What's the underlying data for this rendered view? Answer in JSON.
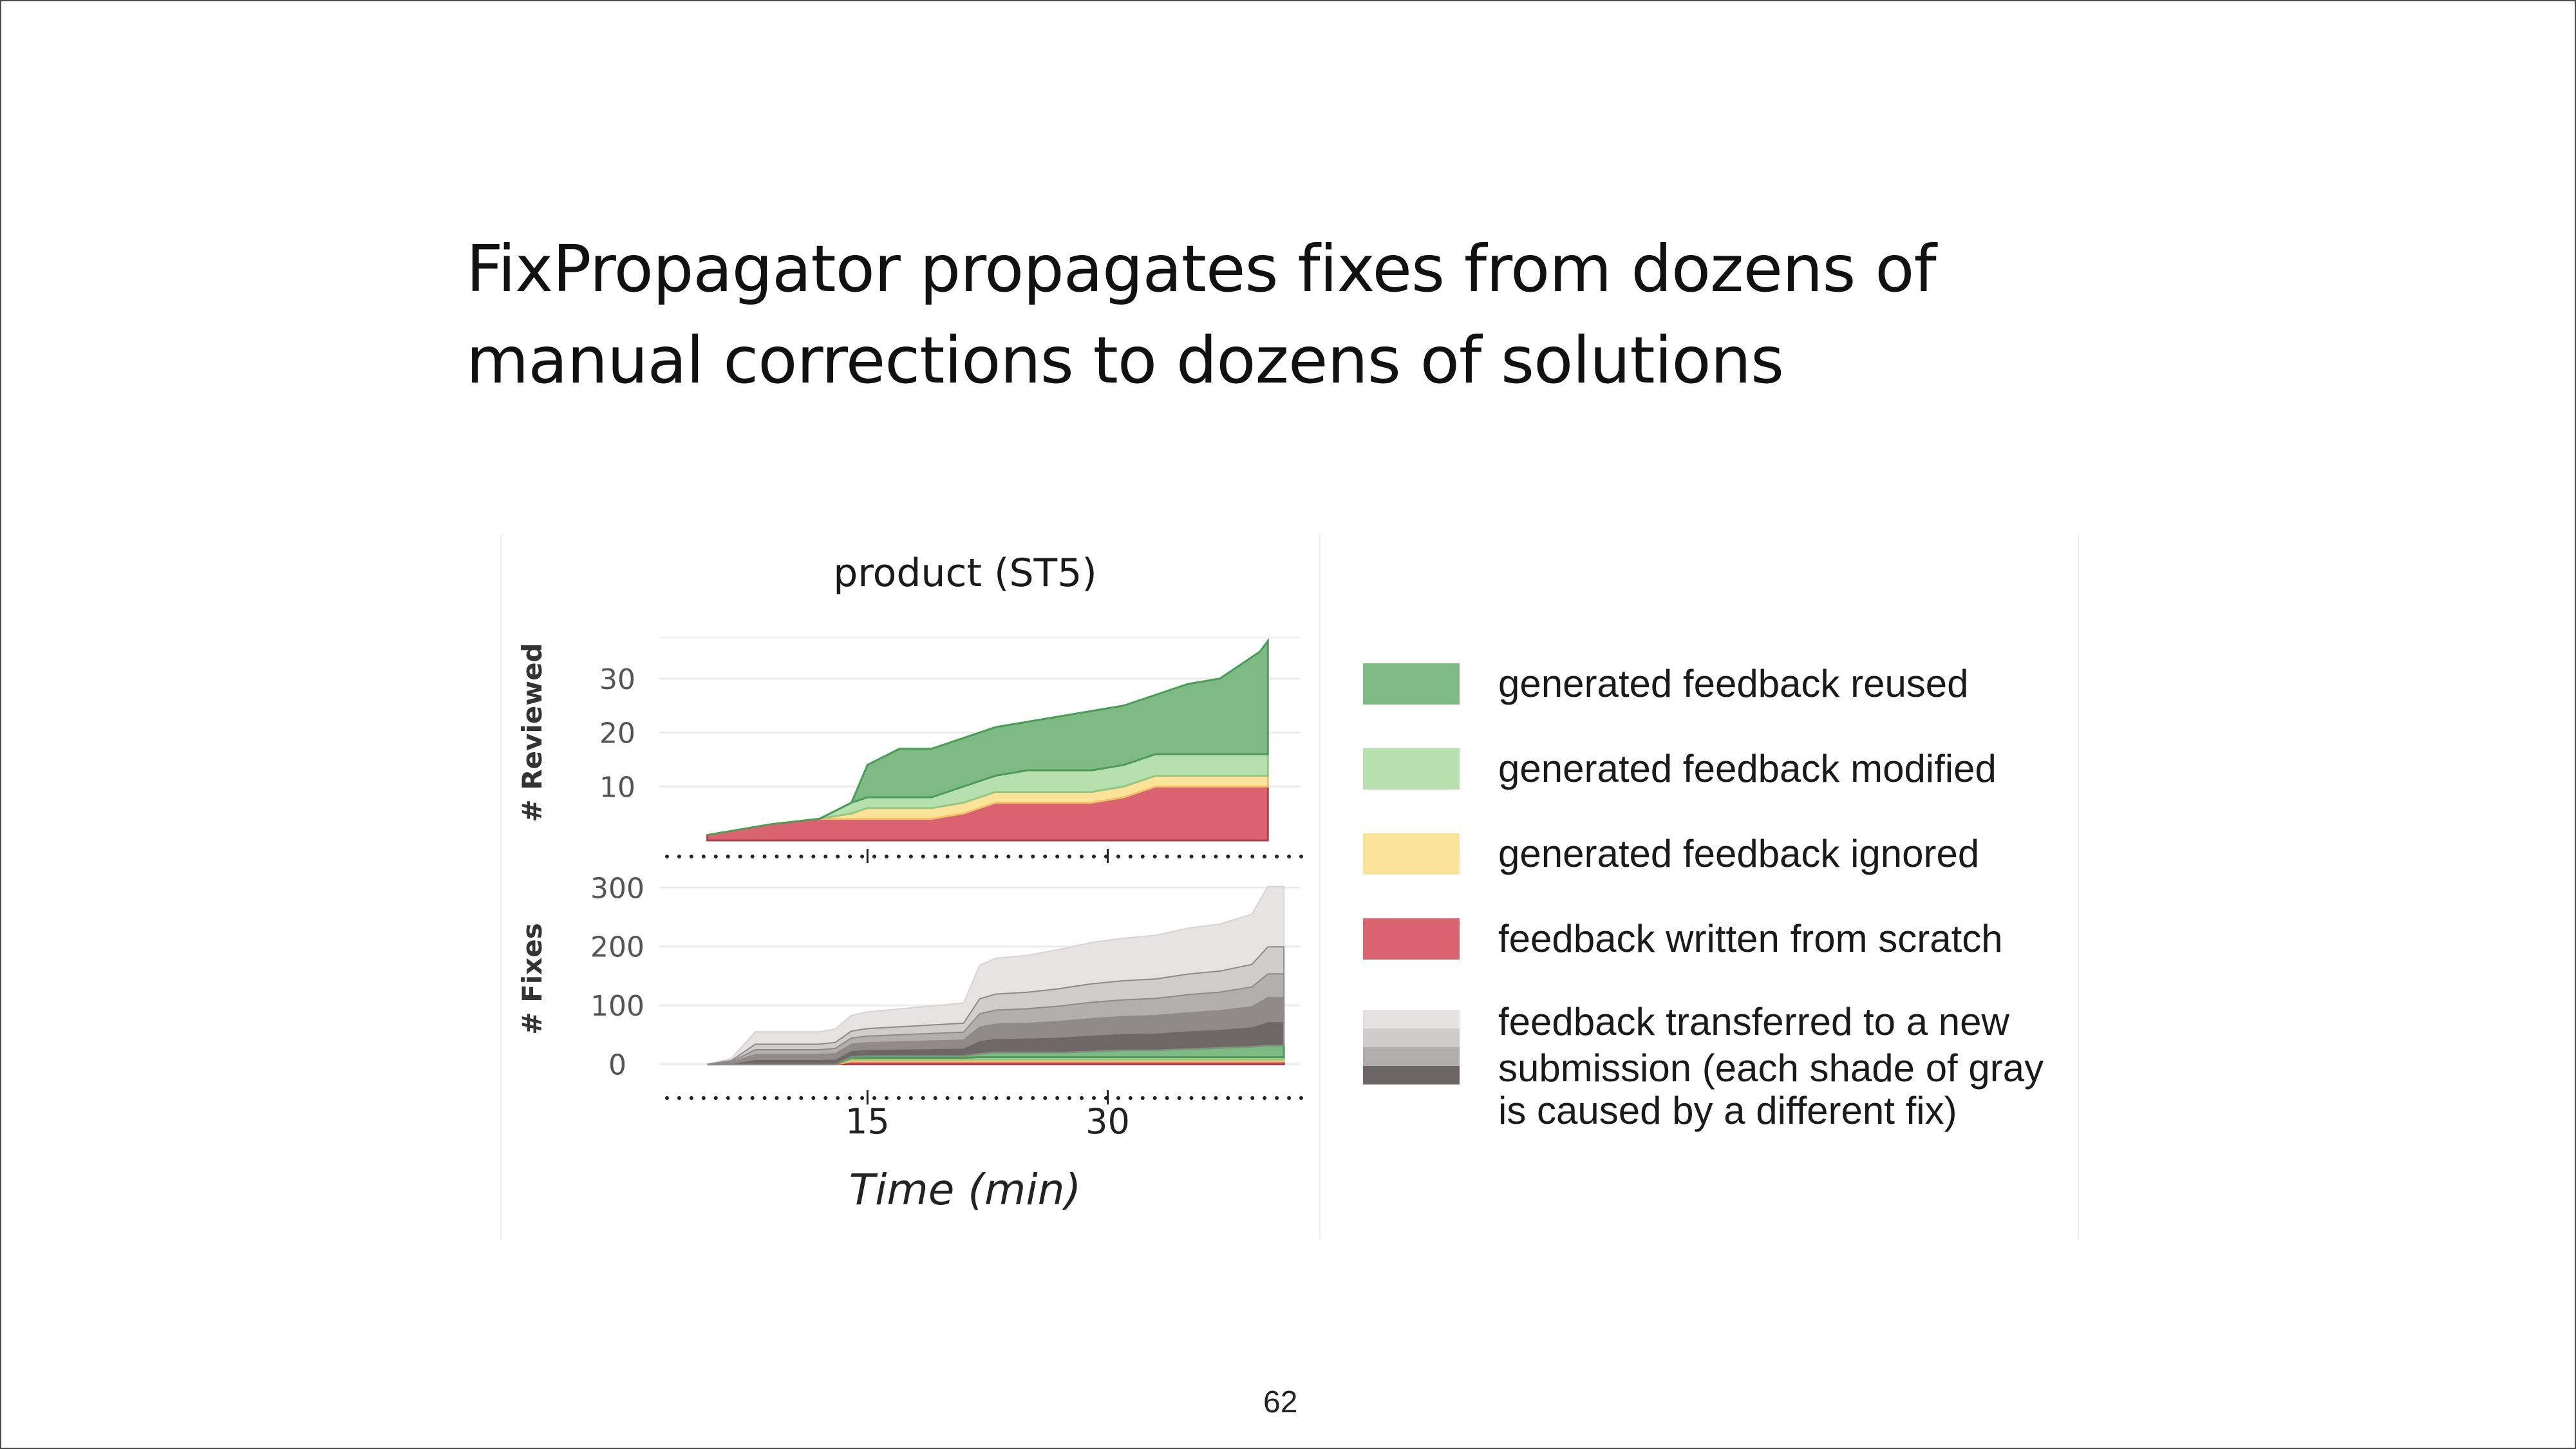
{
  "slide": {
    "title_line1": "FixPropagator propagates fixes from dozens of",
    "title_line2": "manual corrections to dozens of solutions",
    "page_number": "62"
  },
  "chart_data": {
    "type": "area",
    "title": "product (ST5)",
    "xlabel": "Time (min)",
    "x_ticks": [
      15,
      30
    ],
    "colors": {
      "reused": "#7dba84",
      "modified": "#b6e0ad",
      "ignored": "#fbe49a",
      "scratch": "#d96470",
      "gray_shades": [
        "#e6e2e0",
        "#cfcbc9",
        "#b1adab",
        "#8e8987",
        "#6b6664"
      ]
    },
    "panels": [
      {
        "ylabel": "# Reviewed",
        "yticks": [
          10,
          20,
          30
        ],
        "ylim": [
          0,
          40
        ],
        "xlim": [
          2,
          42
        ],
        "x": [
          5,
          7,
          9,
          12,
          14,
          15,
          17,
          19,
          21,
          23,
          25,
          27,
          29,
          31,
          33,
          35,
          37,
          38,
          39.5,
          40
        ],
        "series": [
          {
            "key": "scratch",
            "values": [
              1,
              2,
              3,
              4,
              4,
              4,
              4,
              4,
              5,
              7,
              7,
              7,
              7,
              8,
              10,
              10,
              10,
              10,
              10,
              10
            ]
          },
          {
            "key": "ignored",
            "values": [
              0,
              0,
              0,
              0,
              1,
              2,
              2,
              2,
              2,
              2,
              2,
              2,
              2,
              2,
              2,
              2,
              2,
              2,
              2,
              2
            ]
          },
          {
            "key": "modified",
            "values": [
              0,
              0,
              0,
              0,
              2,
              2,
              2,
              2,
              3,
              3,
              4,
              4,
              4,
              4,
              4,
              4,
              4,
              4,
              4,
              4
            ]
          },
          {
            "key": "reused",
            "values": [
              0,
              0,
              0,
              0,
              0,
              6,
              9,
              9,
              9,
              9,
              9,
              10,
              11,
              11,
              11,
              13,
              14,
              16,
              19,
              21
            ]
          }
        ]
      },
      {
        "ylabel": "# Fixes",
        "yticks": [
          0,
          100,
          200,
          300
        ],
        "ylim": [
          -30,
          320
        ],
        "xlim": [
          2,
          42
        ],
        "x": [
          5,
          6.5,
          8,
          12,
          13,
          14,
          15,
          17,
          19,
          21,
          22,
          23,
          25,
          27,
          29,
          31,
          33,
          35,
          37,
          39,
          40,
          41
        ],
        "series": [
          {
            "key": "scratch",
            "values": [
              0,
              0,
              0,
              0,
              0,
              5,
              5,
              5,
              5,
              5,
              5,
              5,
              5,
              5,
              5,
              5,
              5,
              5,
              5,
              5,
              5,
              5
            ]
          },
          {
            "key": "ignored",
            "values": [
              0,
              0,
              0,
              0,
              0,
              3,
              3,
              3,
              3,
              3,
              3,
              3,
              3,
              3,
              3,
              3,
              3,
              3,
              3,
              3,
              3,
              3
            ]
          },
          {
            "key": "modified",
            "values": [
              0,
              0,
              0,
              0,
              0,
              3,
              3,
              3,
              3,
              3,
              4,
              4,
              4,
              4,
              4,
              4,
              4,
              4,
              4,
              4,
              4,
              4
            ]
          },
          {
            "key": "reused",
            "values": [
              0,
              0,
              0,
              0,
              0,
              2,
              3,
              3,
              3,
              3,
              6,
              8,
              8,
              8,
              10,
              12,
              12,
              14,
              16,
              18,
              20,
              20
            ]
          },
          {
            "key": "gray",
            "values": [
              0,
              10,
              55,
              55,
              60,
              70,
              75,
              80,
              85,
              90,
              150,
              160,
              165,
              175,
              185,
              190,
              195,
              205,
              210,
              225,
              270,
              270
            ]
          }
        ]
      }
    ],
    "legend": [
      {
        "key": "reused",
        "label": "generated feedback reused"
      },
      {
        "key": "modified",
        "label": "generated feedback modified"
      },
      {
        "key": "ignored",
        "label": "generated feedback ignored"
      },
      {
        "key": "scratch",
        "label": "feedback written from scratch"
      },
      {
        "key": "gray",
        "label_lines": [
          "feedback transferred to a new",
          "submission (each shade of gray",
          "is caused by a different fix)"
        ]
      }
    ]
  }
}
